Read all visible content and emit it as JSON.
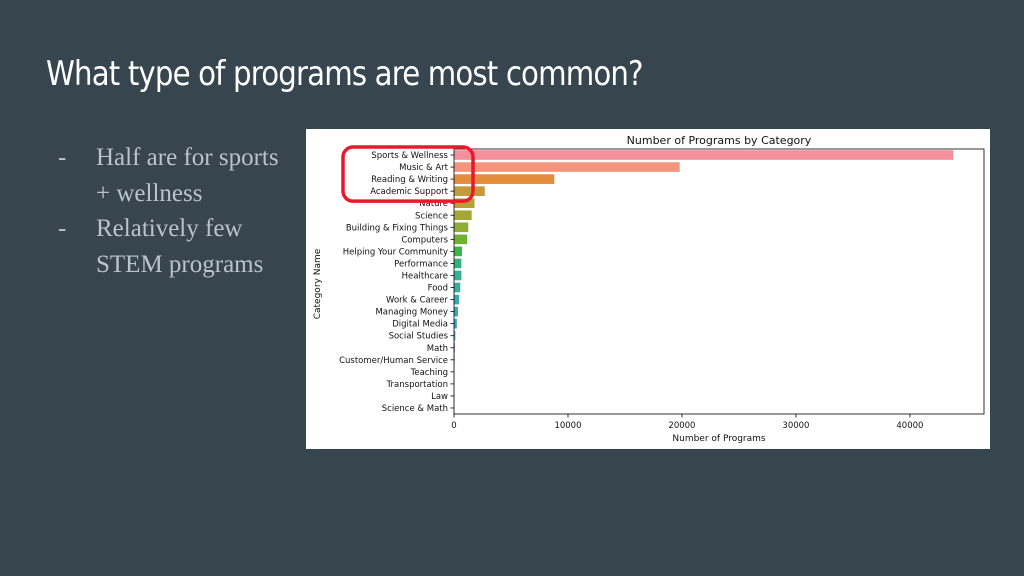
{
  "slide": {
    "title": "What type of programs are most common?",
    "bullets": [
      {
        "dash": "-",
        "text": "Half are for sports + wellness"
      },
      {
        "dash": "-",
        "text": "Relatively few STEM programs"
      }
    ]
  },
  "colors": {
    "background": "#37454f",
    "title": "#ffffff",
    "bullet_text": "#b9c3cb",
    "highlight": "#e8192c"
  },
  "chart_data": {
    "type": "bar",
    "orientation": "horizontal",
    "title": "Number of Programs by Category",
    "xlabel": "Number of Programs",
    "ylabel": "Category Name",
    "xlim": [
      0,
      46500
    ],
    "xticks": [
      0,
      10000,
      20000,
      30000,
      40000
    ],
    "grid": false,
    "highlight_categories": [
      "Sports & Wellness",
      "Music & Art",
      "Reading & Writing",
      "Academic Support"
    ],
    "categories": [
      "Sports & Wellness",
      "Music & Art",
      "Reading & Writing",
      "Academic Support",
      "Nature",
      "Science",
      "Building & Fixing Things",
      "Computers",
      "Helping Your Community",
      "Performance",
      "Healthcare",
      "Food",
      "Work & Career",
      "Managing Money",
      "Digital Media",
      "Social Studies",
      "Math",
      "Customer/Human Service",
      "Teaching",
      "Transportation",
      "Law",
      "Science & Math"
    ],
    "values": [
      43800,
      19800,
      8800,
      2700,
      1800,
      1550,
      1250,
      1150,
      700,
      650,
      650,
      550,
      450,
      350,
      250,
      120,
      80,
      60,
      40,
      30,
      20,
      10
    ],
    "bar_colors": [
      "#f48f9b",
      "#f2957c",
      "#e58b3c",
      "#c69a3c",
      "#b3a233",
      "#a4a834",
      "#8fac34",
      "#6fb133",
      "#3bb54a",
      "#34b27c",
      "#35b195",
      "#36ad9f",
      "#38aaab",
      "#39a7b6",
      "#3ba3c2",
      "#5a9bd8",
      "#8d91eb",
      "#ad84ee",
      "#c97bea",
      "#e57ad9",
      "#f37bc3",
      "#f585ae"
    ]
  }
}
